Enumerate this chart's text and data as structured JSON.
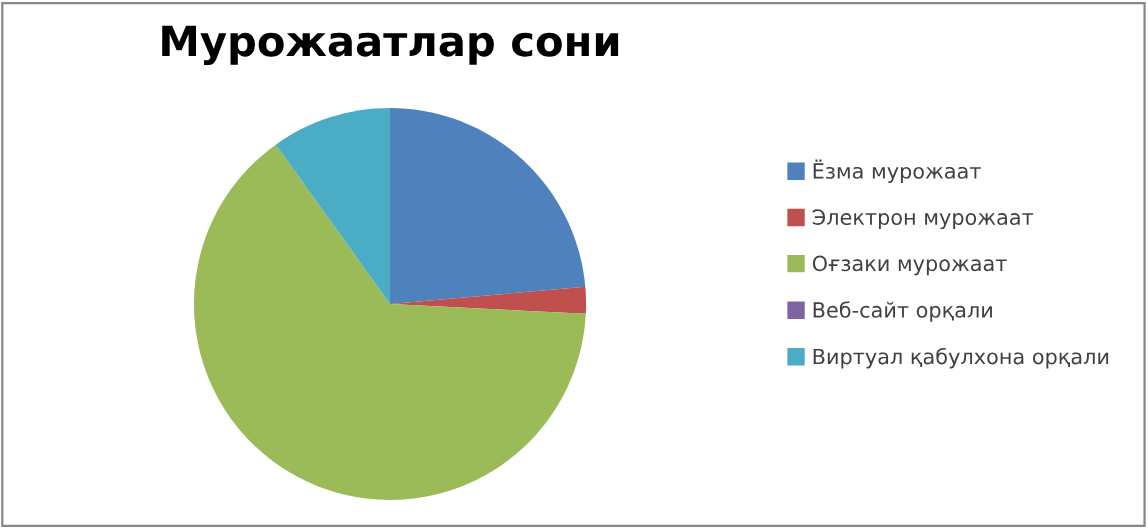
{
  "chart_data": {
    "type": "pie",
    "title": "Мурожаатлар сони",
    "categories": [
      "Ёзма мурожаат",
      "Электрон мурожаат",
      "Оғзаки мурожаат",
      "Веб-сайт орқали",
      "Виртуал қабулхона орқали"
    ],
    "values": [
      23.6,
      2.2,
      64.3,
      0,
      9.9
    ],
    "colors": [
      "#4f81bd",
      "#c0504d",
      "#9bbb59",
      "#8064a2",
      "#4bacc6"
    ],
    "legend": "right"
  }
}
